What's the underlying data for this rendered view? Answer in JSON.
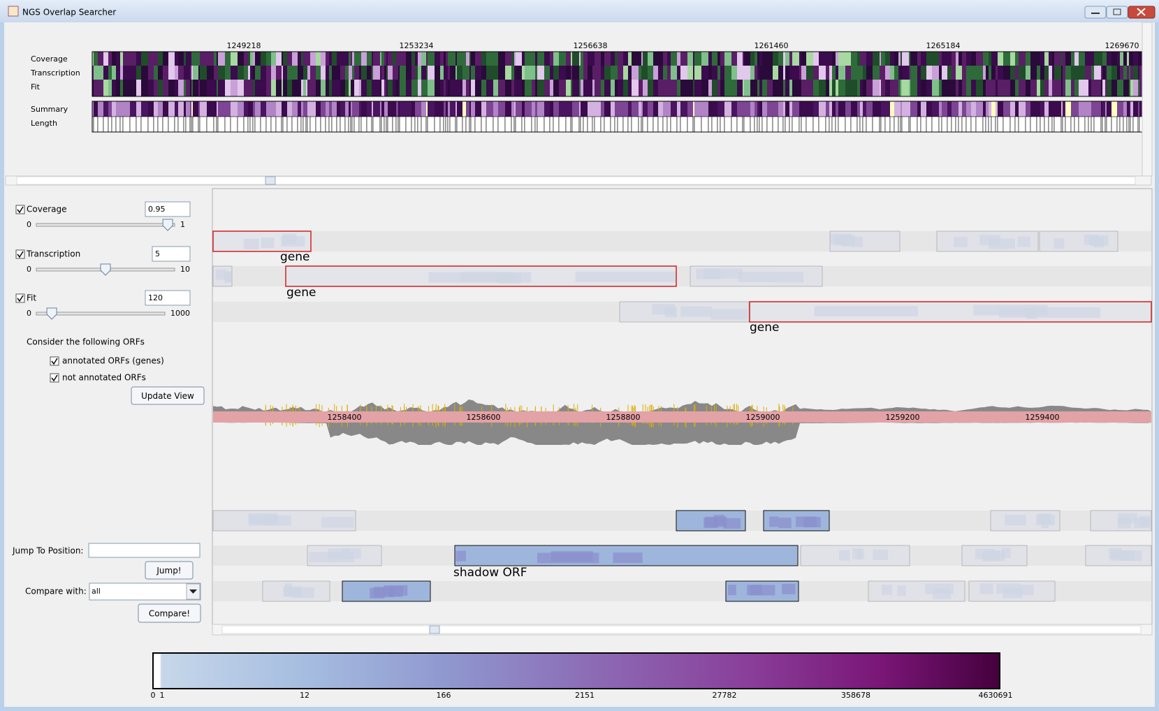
{
  "window": {
    "title": "NGS Overlap Searcher"
  },
  "overview": {
    "ticks": [
      "1249218",
      "1253234",
      "1256638",
      "1261460",
      "1265184",
      "1269670"
    ],
    "tracks": [
      "Coverage",
      "Transcription",
      "Fit",
      "Summary",
      "Length"
    ]
  },
  "controls": {
    "coverage": {
      "label": "Coverage",
      "value": "0.95",
      "min": "0",
      "max": "1"
    },
    "transcription": {
      "label": "Transcription",
      "value": "5",
      "min": "0",
      "max": "10"
    },
    "fit": {
      "label": "Fit",
      "value": "120",
      "min": "0",
      "max": "1000"
    },
    "orfs": {
      "heading": "Consider the following ORFs",
      "options": [
        "annotated ORFs (genes)",
        "not annotated ORFs"
      ]
    },
    "update_button": "Update View",
    "jump": {
      "label": "Jump To Position:",
      "button": "Jump!"
    },
    "compare": {
      "label": "Compare with:",
      "value": "all",
      "button": "Compare!"
    }
  },
  "view": {
    "ruler": [
      "1258400",
      "1258600",
      "1258800",
      "1259000",
      "1259200",
      "1259400"
    ],
    "gene_labels": [
      "gene",
      "gene",
      "gene"
    ],
    "orf_label": "shadow ORF"
  },
  "legend": {
    "labels": [
      "0",
      "1",
      "12",
      "166",
      "2151",
      "27782",
      "358678",
      "4630691"
    ]
  }
}
